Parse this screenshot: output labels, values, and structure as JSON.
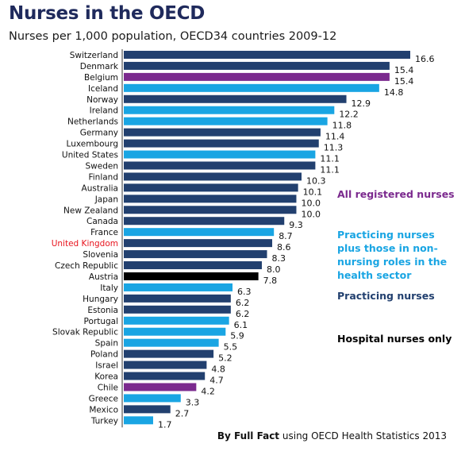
{
  "title": "Nurses in the OECD",
  "subtitle": "Nurses per 1,000 population, OECD34 countries 2009-12",
  "footer": {
    "source_bold": "By Full Fact",
    "source_rest": "using OECD Health Statistics 2013"
  },
  "colors": {
    "all_registered": "#7b2a8e",
    "practicing_plus": "#19a5e3",
    "practicing": "#22406f",
    "hospital": "#000000",
    "highlight_label": "#e8141e"
  },
  "legend": [
    {
      "key": "all_registered",
      "label": "All registered nurses"
    },
    {
      "key": "practicing_plus",
      "label": "Practicing nurses plus those in non-nursing roles in the health sector"
    },
    {
      "key": "practicing",
      "label": "Practicing nurses"
    },
    {
      "key": "hospital",
      "label": "Hospital nurses only"
    }
  ],
  "chart_data": {
    "type": "bar",
    "orientation": "horizontal",
    "xlim": [
      0,
      16.6
    ],
    "categories": [
      "Switzerland",
      "Denmark",
      "Belgium",
      "Iceland",
      "Norway",
      "Ireland",
      "Netherlands",
      "Germany",
      "Luxembourg",
      "United States",
      "Sweden",
      "Finland",
      "Australia",
      "Japan",
      "New Zealand",
      "Canada",
      "France",
      "United Kingdom",
      "Slovenia",
      "Czech Republic",
      "Austria",
      "Italy",
      "Hungary",
      "Estonia",
      "Portugal",
      "Slovak Republic",
      "Spain",
      "Poland",
      "Israel",
      "Korea",
      "Chile",
      "Greece",
      "Mexico",
      "Turkey"
    ],
    "values": [
      16.6,
      15.4,
      15.4,
      14.8,
      12.9,
      12.2,
      11.8,
      11.4,
      11.3,
      11.1,
      11.1,
      10.3,
      10.1,
      10.0,
      10.0,
      9.3,
      8.7,
      8.6,
      8.3,
      8.0,
      7.8,
      6.3,
      6.2,
      6.2,
      6.1,
      5.9,
      5.5,
      5.2,
      4.8,
      4.7,
      4.2,
      3.3,
      2.7,
      1.7
    ],
    "value_labels": [
      "16.6",
      "15.4",
      "15.4",
      "14.8",
      "12.9",
      "12.2",
      "11.8",
      "11.4",
      "11.3",
      "11.1",
      "11.1",
      "10.3",
      "10.1",
      "10.0",
      "10.0",
      "9.3",
      "8.7",
      "8.6",
      "8.3",
      "8.0",
      "7.8",
      "6.3",
      "6.2",
      "6.2",
      "6.1",
      "5.9",
      "5.5",
      "5.2",
      "4.8",
      "4.7",
      "4.2",
      "3.3",
      "2.7",
      "1.7"
    ],
    "series_type": [
      "practicing",
      "practicing",
      "all_registered",
      "practicing_plus",
      "practicing",
      "practicing_plus",
      "practicing_plus",
      "practicing",
      "practicing",
      "practicing_plus",
      "practicing",
      "practicing",
      "practicing",
      "practicing",
      "practicing",
      "practicing",
      "practicing_plus",
      "practicing",
      "practicing",
      "practicing",
      "hospital",
      "practicing_plus",
      "practicing",
      "practicing",
      "practicing_plus",
      "practicing_plus",
      "practicing_plus",
      "practicing",
      "practicing",
      "practicing",
      "all_registered",
      "practicing_plus",
      "practicing",
      "practicing_plus"
    ],
    "highlight": "United Kingdom"
  }
}
